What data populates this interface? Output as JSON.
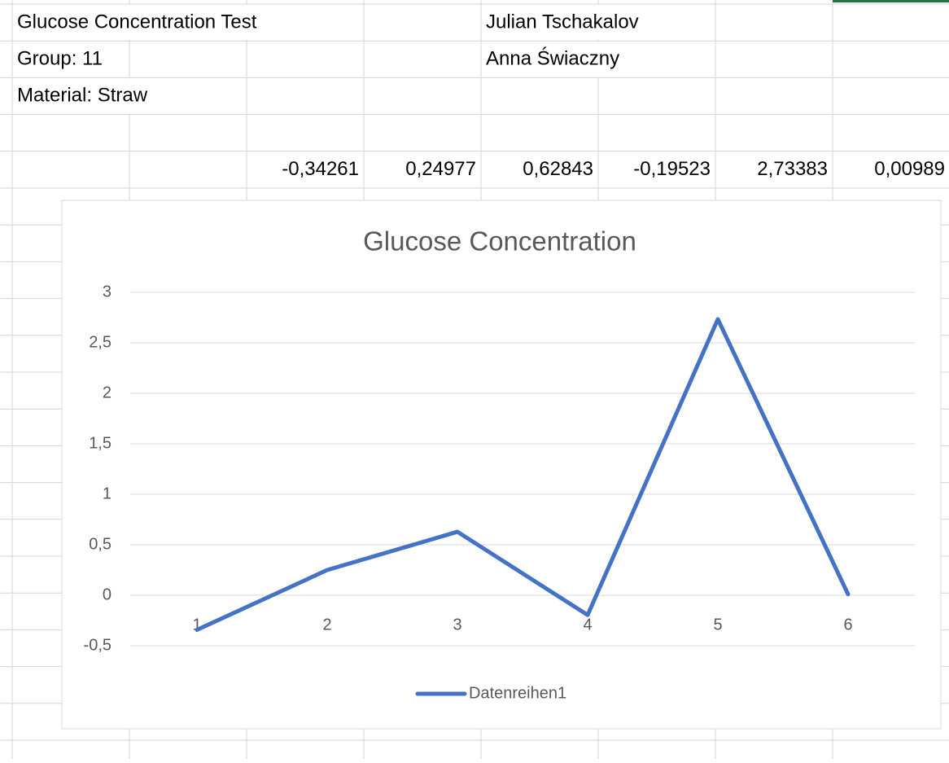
{
  "sheet": {
    "rows": {
      "1": {
        "A": "Glucose Concentration Test",
        "E": "Julian Tschakalov"
      },
      "2": {
        "A": "Group: 11",
        "E": "Anna Świaczny"
      },
      "3": {
        "A": "Material: Straw"
      },
      "5": {
        "C": "-0,34261",
        "D": "0,24977",
        "E": "0,62843",
        "F": "-0,19523",
        "G": "2,73383",
        "H": "0,00989"
      }
    }
  },
  "chart_data": {
    "type": "line",
    "title": "Glucose Concentration",
    "categories": [
      "1",
      "2",
      "3",
      "4",
      "5",
      "6"
    ],
    "series": [
      {
        "name": "Datenreihen1",
        "color": "#4472c4",
        "values": [
          -0.34261,
          0.24977,
          0.62843,
          -0.19523,
          2.73383,
          0.00989
        ]
      }
    ],
    "ylim": [
      -0.5,
      3
    ],
    "yticks": [
      {
        "value": -0.5,
        "label": "-0,5"
      },
      0,
      {
        "value": 0.5,
        "label": "0,5"
      },
      1,
      {
        "value": 1.5,
        "label": "1,5"
      },
      2,
      {
        "value": 2.5,
        "label": "2,5"
      },
      3
    ],
    "grid": true,
    "legend": "bottom"
  }
}
